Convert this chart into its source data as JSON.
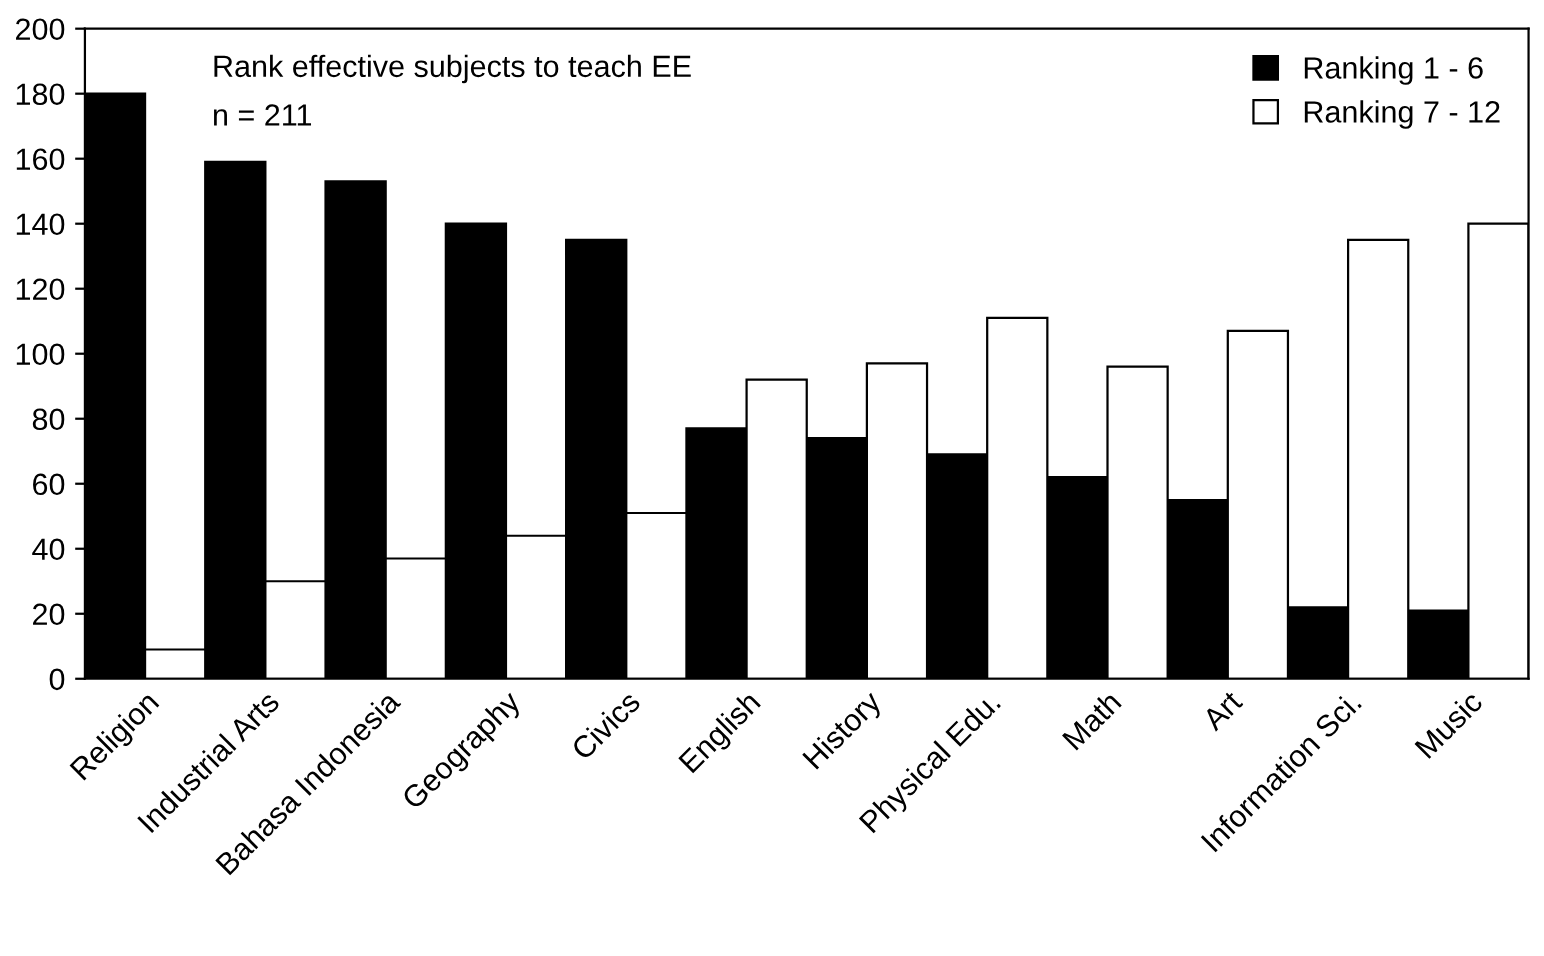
{
  "chart_data": {
    "type": "bar",
    "categories": [
      "Religion",
      "Industrial Arts",
      "Bahasa Indonesia",
      "Geography",
      "Civics",
      "English",
      "History",
      "Physical Edu.",
      "Math",
      "Art",
      "Information Sci.",
      "Music"
    ],
    "series": [
      {
        "name": "Ranking 1 - 6",
        "color": "#000000",
        "values": [
          180,
          159,
          153,
          140,
          135,
          77,
          74,
          69,
          62,
          55,
          22,
          21
        ]
      },
      {
        "name": "Ranking 7 - 12",
        "color": "#ffffff",
        "values": [
          9,
          30,
          37,
          44,
          51,
          92,
          97,
          111,
          96,
          107,
          135,
          140
        ]
      }
    ],
    "ylim": [
      0,
      200
    ],
    "yticks": [
      0,
      20,
      40,
      60,
      80,
      100,
      120,
      140,
      160,
      180,
      200
    ],
    "grid": false,
    "legend": "top right",
    "annotations": [
      "Rank effective subjects to teach EE",
      "n = 211"
    ]
  }
}
